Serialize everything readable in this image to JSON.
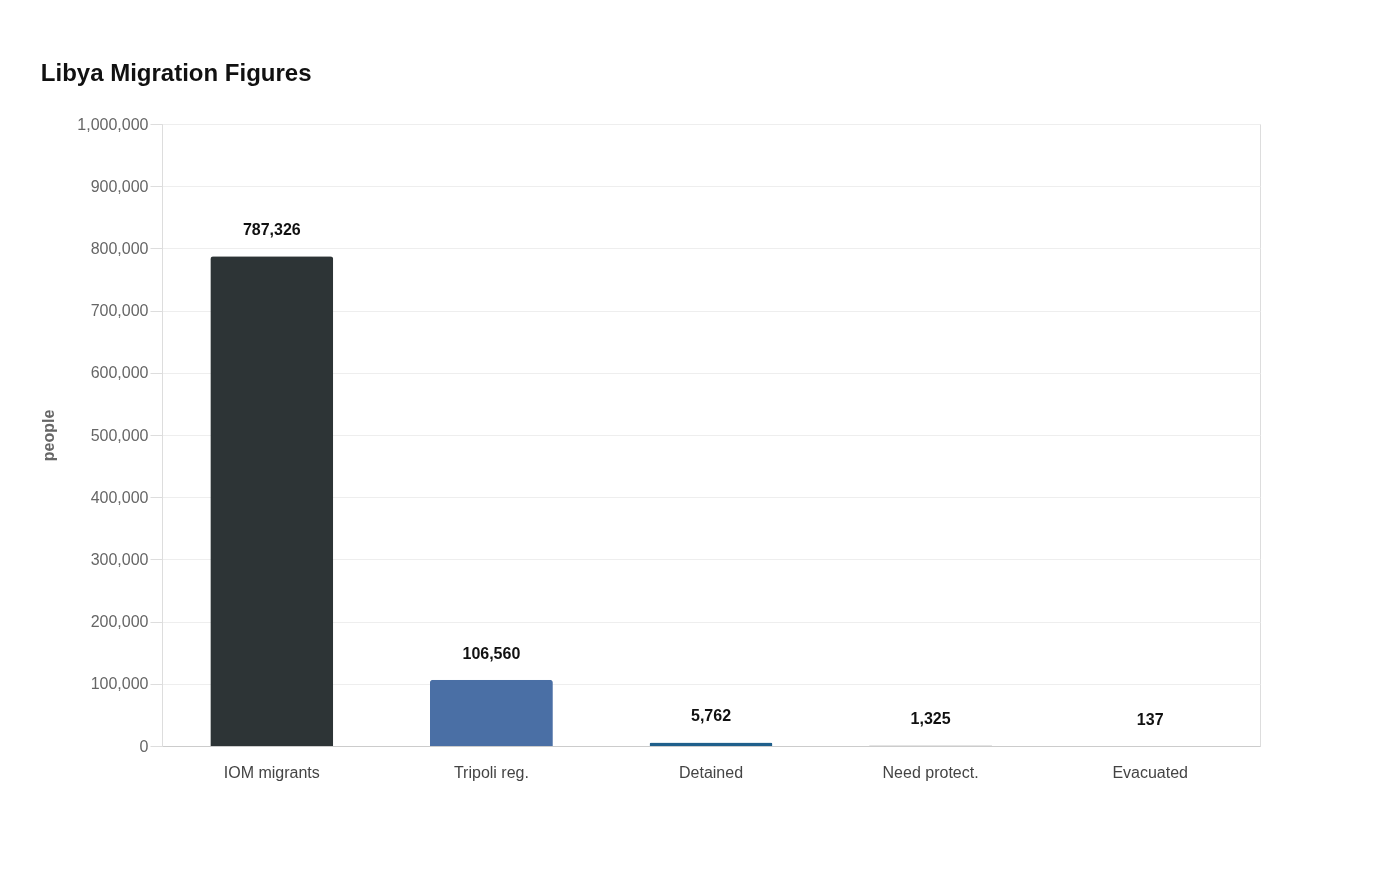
{
  "chart_data": {
    "type": "bar",
    "title": "Libya Migration Figures",
    "ylabel": "people",
    "categories": [
      "IOM migrants",
      "Tripoli reg.",
      "Detained",
      "Need protect.",
      "Evacuated"
    ],
    "values": [
      787326,
      106560,
      5762,
      1325,
      137
    ],
    "value_labels": [
      "787,326",
      "106,560",
      "5,762",
      "1,325",
      "137"
    ],
    "colors": [
      "#2d3436",
      "#4a6fa5",
      "#1f5f8b",
      "#d0d0d0",
      "#c8c8c8"
    ],
    "ylim": [
      0,
      1000000
    ],
    "yticks": [
      0,
      {
        "value": 100000,
        "label": "100,000"
      },
      {
        "value": 200000,
        "label": "200,000"
      },
      {
        "value": 300000,
        "label": "300,000"
      },
      {
        "value": 400000,
        "label": "400,000"
      },
      {
        "value": 500000,
        "label": "500,000"
      },
      {
        "value": 600000,
        "label": "600,000"
      },
      {
        "value": 700000,
        "label": "700,000"
      },
      {
        "value": 800000,
        "label": "800,000"
      },
      {
        "value": 900000,
        "label": "900,000"
      },
      {
        "value": 1000000,
        "label": "1,000,000"
      }
    ],
    "grid": "y"
  }
}
